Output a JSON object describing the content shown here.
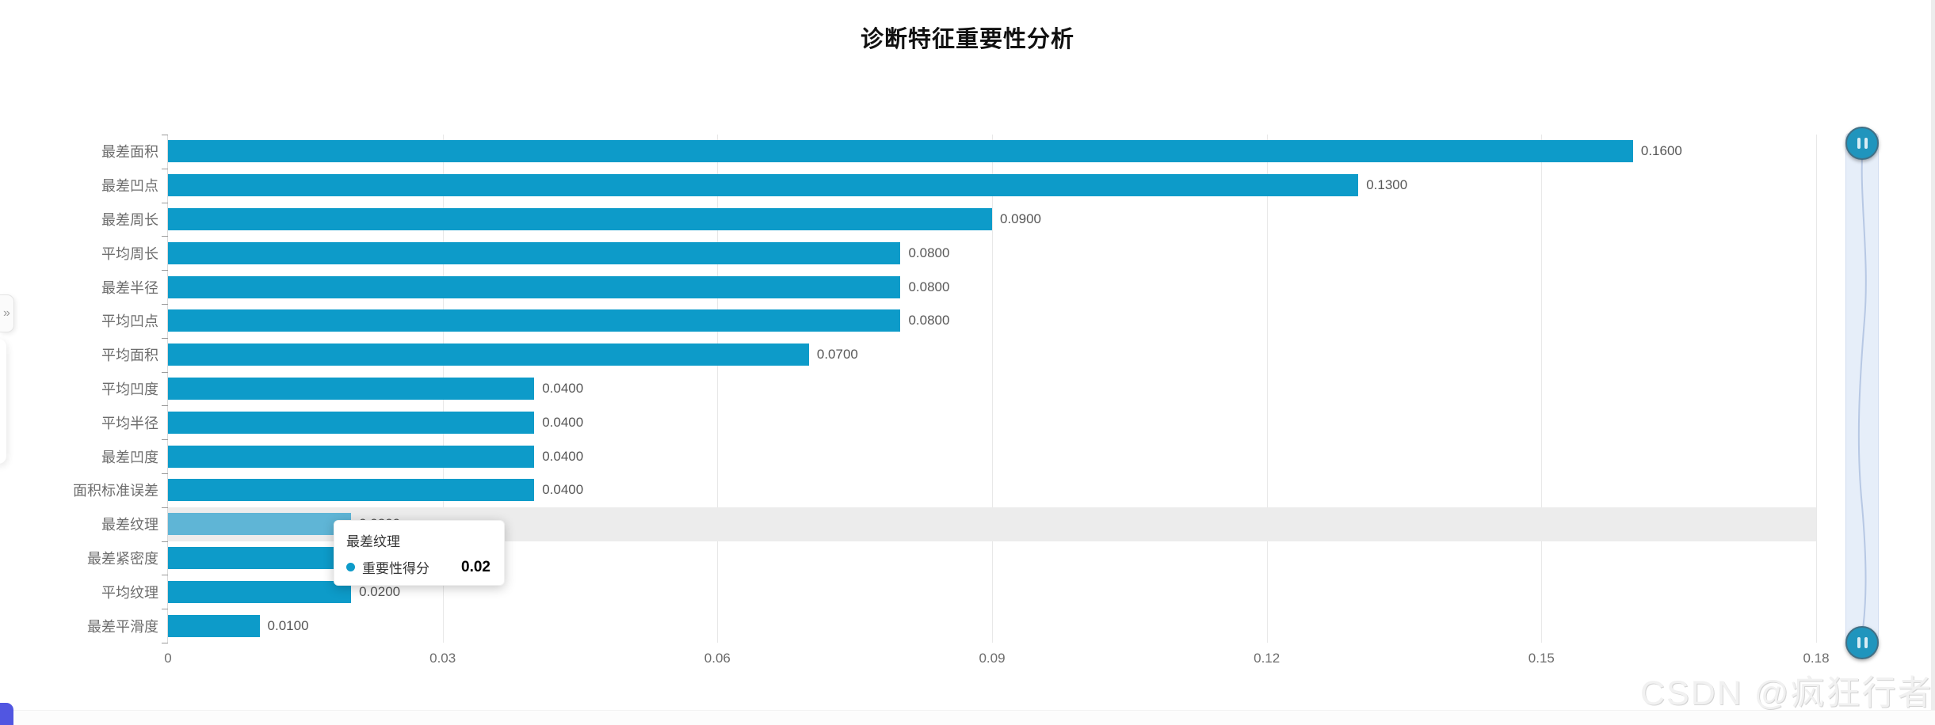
{
  "page": {
    "watermark": "CSDN @疯狂行者"
  },
  "chart_data": {
    "type": "bar",
    "orientation": "horizontal",
    "title": "诊断特征重要性分析",
    "categories": [
      "最差面积",
      "最差凹点",
      "最差周长",
      "平均周长",
      "最差半径",
      "平均凹点",
      "平均面积",
      "平均凹度",
      "平均半径",
      "最差凹度",
      "面积标准误差",
      "最差纹理",
      "最差紧密度",
      "平均纹理",
      "最差平滑度"
    ],
    "series": [
      {
        "name": "重要性得分",
        "values": [
          0.16,
          0.13,
          0.09,
          0.08,
          0.08,
          0.08,
          0.07,
          0.04,
          0.04,
          0.04,
          0.04,
          0.02,
          0.02,
          0.02,
          0.01
        ]
      }
    ],
    "value_labels": [
      "0.1600",
      "0.1300",
      "0.0900",
      "0.0800",
      "0.0800",
      "0.0800",
      "0.0700",
      "0.0400",
      "0.0400",
      "0.0400",
      "0.0400",
      "0.0200",
      "0.0200",
      "0.0200",
      "0.0100"
    ],
    "x_ticks": [
      "0",
      "0.03",
      "0.06",
      "0.09",
      "0.12",
      "0.15",
      "0.18"
    ],
    "xlim": [
      0,
      0.18
    ],
    "ylabel": "",
    "xlabel": "",
    "grid": true,
    "legend_position": "none",
    "highlighted_index": 11,
    "highlighted_category": "最差纹理",
    "bar_color": "#0D9BC9",
    "hover_bar_color": "#5FB5D6",
    "highlight_band_color": "#ECECEC"
  },
  "tooltip": {
    "category": "最差纹理",
    "series_name": "重要性得分",
    "value": "0.02",
    "marker_color": "#0D9BC9",
    "marker_icon": "circle-dot-icon"
  },
  "datazoom": {
    "handle_icon": "pause-icon",
    "track_color": "#E6EEF9",
    "handle_color": "#2095BD"
  },
  "left_edge": {
    "expander_glyph": "»",
    "expander_icon": "double-chevron-right-icon"
  },
  "corner_button_color": "#5156E1"
}
